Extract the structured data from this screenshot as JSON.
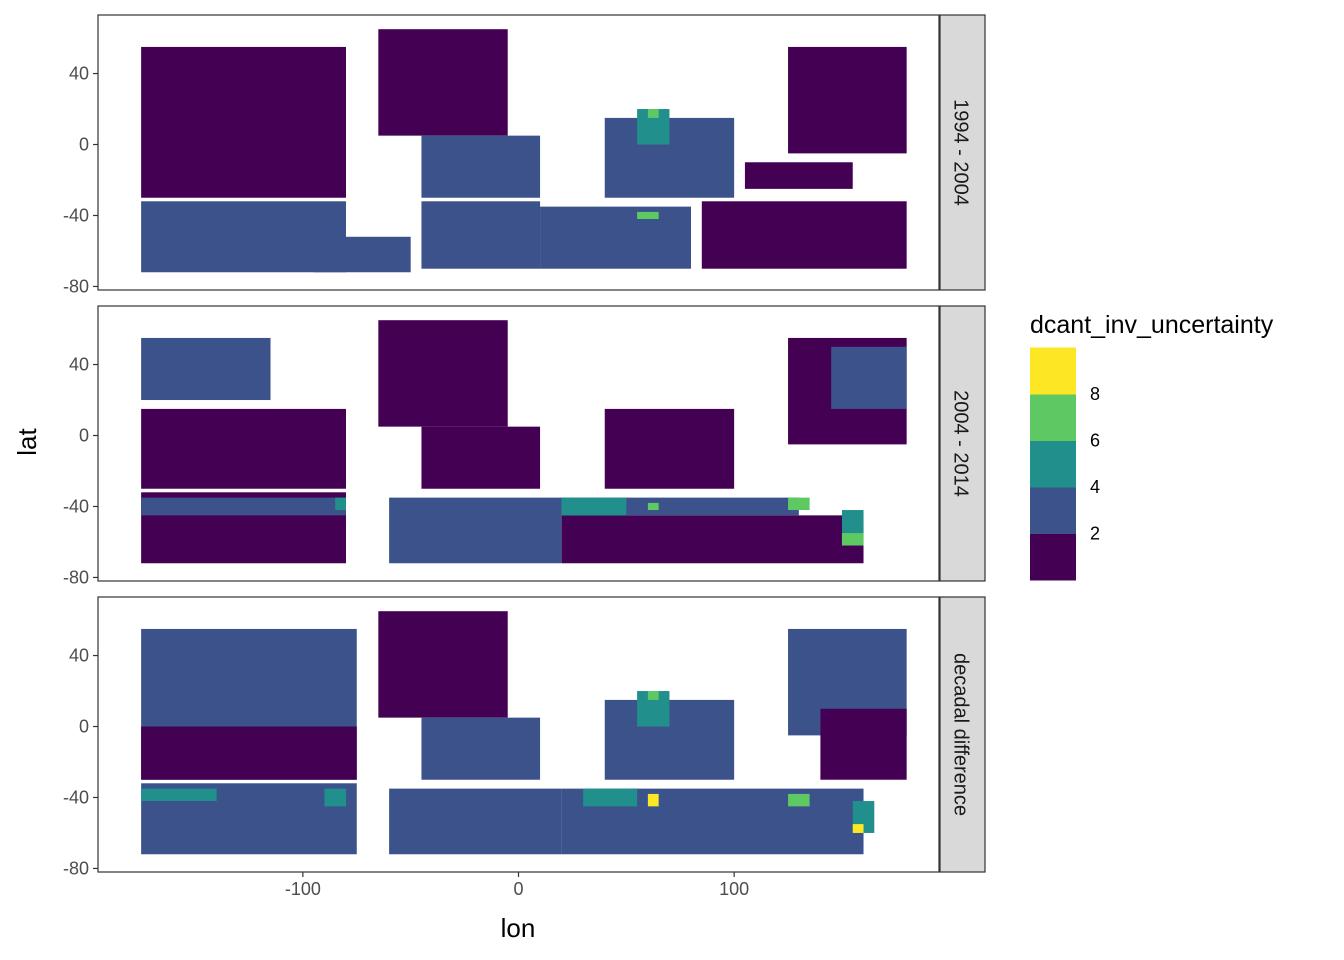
{
  "chart_data": {
    "type": "heatmap",
    "title": "",
    "xlabel": "lon",
    "ylabel": "lat",
    "xlim": [
      -195,
      195
    ],
    "ylim": [
      -82,
      73
    ],
    "xticks": [
      -100,
      0,
      100
    ],
    "xtick_labels": [
      "-100",
      "0",
      "100"
    ],
    "yticks": [
      -80,
      -40,
      0,
      40
    ],
    "ytick_labels": [
      "-80",
      "-40",
      "0",
      "40"
    ],
    "grid": false,
    "legend": {
      "title": "dcant_inv_uncertainty",
      "placement": "right",
      "breaks": [
        "2",
        "4",
        "6",
        "8"
      ],
      "bins": [
        {
          "range": [
            0,
            2
          ],
          "color": "#440154"
        },
        {
          "range": [
            2,
            4
          ],
          "color": "#3b528b"
        },
        {
          "range": [
            4,
            6
          ],
          "color": "#21908c"
        },
        {
          "range": [
            6,
            8
          ],
          "color": "#5ec962"
        },
        {
          "range": [
            8,
            10
          ],
          "color": "#fde725"
        }
      ]
    },
    "grid_resolution_deg": 5,
    "facets": [
      {
        "label": "1994 - 2004",
        "regions": [
          {
            "lon": [
              -175,
              -80
            ],
            "lat": [
              -30,
              55
            ],
            "bin": 1
          },
          {
            "lon": [
              -175,
              -80
            ],
            "lat": [
              -72,
              -32
            ],
            "bin": 2
          },
          {
            "lon": [
              -95,
              -50
            ],
            "lat": [
              -72,
              -52
            ],
            "bin": 2
          },
          {
            "lon": [
              -65,
              -5
            ],
            "lat": [
              5,
              65
            ],
            "bin": 1
          },
          {
            "lon": [
              -45,
              10
            ],
            "lat": [
              -30,
              5
            ],
            "bin": 2
          },
          {
            "lon": [
              -45,
              10
            ],
            "lat": [
              -70,
              -32
            ],
            "bin": 2
          },
          {
            "lon": [
              10,
              80
            ],
            "lat": [
              -70,
              -35
            ],
            "bin": 2
          },
          {
            "lon": [
              40,
              100
            ],
            "lat": [
              -30,
              15
            ],
            "bin": 2
          },
          {
            "lon": [
              55,
              70
            ],
            "lat": [
              0,
              20
            ],
            "bin": 3
          },
          {
            "lon": [
              60,
              65
            ],
            "lat": [
              15,
              20
            ],
            "bin": 4
          },
          {
            "lon": [
              55,
              65
            ],
            "lat": [
              -42,
              -38
            ],
            "bin": 4
          },
          {
            "lon": [
              85,
              180
            ],
            "lat": [
              -70,
              -32
            ],
            "bin": 1
          },
          {
            "lon": [
              125,
              180
            ],
            "lat": [
              -5,
              55
            ],
            "bin": 1
          },
          {
            "lon": [
              105,
              155
            ],
            "lat": [
              -25,
              -10
            ],
            "bin": 1
          }
        ]
      },
      {
        "label": "2004 - 2014",
        "regions": [
          {
            "lon": [
              -175,
              -115
            ],
            "lat": [
              20,
              55
            ],
            "bin": 2
          },
          {
            "lon": [
              -175,
              -80
            ],
            "lat": [
              -30,
              15
            ],
            "bin": 1
          },
          {
            "lon": [
              -175,
              -80
            ],
            "lat": [
              -72,
              -32
            ],
            "bin": 1
          },
          {
            "lon": [
              -175,
              -80
            ],
            "lat": [
              -45,
              -35
            ],
            "bin": 2
          },
          {
            "lon": [
              -85,
              -80
            ],
            "lat": [
              -42,
              -35
            ],
            "bin": 3
          },
          {
            "lon": [
              -65,
              -5
            ],
            "lat": [
              5,
              65
            ],
            "bin": 1
          },
          {
            "lon": [
              -45,
              10
            ],
            "lat": [
              -30,
              5
            ],
            "bin": 1
          },
          {
            "lon": [
              -60,
              20
            ],
            "lat": [
              -72,
              -35
            ],
            "bin": 2
          },
          {
            "lon": [
              20,
              160
            ],
            "lat": [
              -72,
              -45
            ],
            "bin": 1
          },
          {
            "lon": [
              20,
              130
            ],
            "lat": [
              -45,
              -35
            ],
            "bin": 2
          },
          {
            "lon": [
              20,
              50
            ],
            "lat": [
              -45,
              -35
            ],
            "bin": 3
          },
          {
            "lon": [
              60,
              65
            ],
            "lat": [
              -42,
              -38
            ],
            "bin": 4
          },
          {
            "lon": [
              125,
              135
            ],
            "lat": [
              -42,
              -35
            ],
            "bin": 4
          },
          {
            "lon": [
              150,
              160
            ],
            "lat": [
              -62,
              -42
            ],
            "bin": 3
          },
          {
            "lon": [
              150,
              160
            ],
            "lat": [
              -62,
              -55
            ],
            "bin": 4
          },
          {
            "lon": [
              40,
              100
            ],
            "lat": [
              -30,
              15
            ],
            "bin": 1
          },
          {
            "lon": [
              125,
              180
            ],
            "lat": [
              -5,
              55
            ],
            "bin": 1
          },
          {
            "lon": [
              145,
              180
            ],
            "lat": [
              15,
              50
            ],
            "bin": 2
          }
        ]
      },
      {
        "label": "decadal difference",
        "regions": [
          {
            "lon": [
              -175,
              -75
            ],
            "lat": [
              -30,
              55
            ],
            "bin": 2
          },
          {
            "lon": [
              -175,
              -75
            ],
            "lat": [
              -30,
              0
            ],
            "bin": 1
          },
          {
            "lon": [
              -175,
              -75
            ],
            "lat": [
              -72,
              -32
            ],
            "bin": 2
          },
          {
            "lon": [
              -175,
              -140
            ],
            "lat": [
              -42,
              -35
            ],
            "bin": 3
          },
          {
            "lon": [
              -90,
              -80
            ],
            "lat": [
              -45,
              -35
            ],
            "bin": 3
          },
          {
            "lon": [
              -65,
              -5
            ],
            "lat": [
              5,
              65
            ],
            "bin": 1
          },
          {
            "lon": [
              -45,
              10
            ],
            "lat": [
              -30,
              5
            ],
            "bin": 2
          },
          {
            "lon": [
              -60,
              20
            ],
            "lat": [
              -72,
              -35
            ],
            "bin": 2
          },
          {
            "lon": [
              20,
              160
            ],
            "lat": [
              -72,
              -35
            ],
            "bin": 2
          },
          {
            "lon": [
              30,
              55
            ],
            "lat": [
              -45,
              -35
            ],
            "bin": 3
          },
          {
            "lon": [
              60,
              65
            ],
            "lat": [
              -45,
              -38
            ],
            "bin": 5
          },
          {
            "lon": [
              125,
              135
            ],
            "lat": [
              -45,
              -38
            ],
            "bin": 4
          },
          {
            "lon": [
              155,
              165
            ],
            "lat": [
              -60,
              -42
            ],
            "bin": 3
          },
          {
            "lon": [
              155,
              160
            ],
            "lat": [
              -60,
              -55
            ],
            "bin": 5
          },
          {
            "lon": [
              40,
              100
            ],
            "lat": [
              -30,
              15
            ],
            "bin": 2
          },
          {
            "lon": [
              55,
              70
            ],
            "lat": [
              0,
              20
            ],
            "bin": 3
          },
          {
            "lon": [
              60,
              65
            ],
            "lat": [
              15,
              20
            ],
            "bin": 4
          },
          {
            "lon": [
              125,
              180
            ],
            "lat": [
              -5,
              55
            ],
            "bin": 2
          },
          {
            "lon": [
              140,
              180
            ],
            "lat": [
              -30,
              10
            ],
            "bin": 1
          }
        ]
      }
    ]
  }
}
